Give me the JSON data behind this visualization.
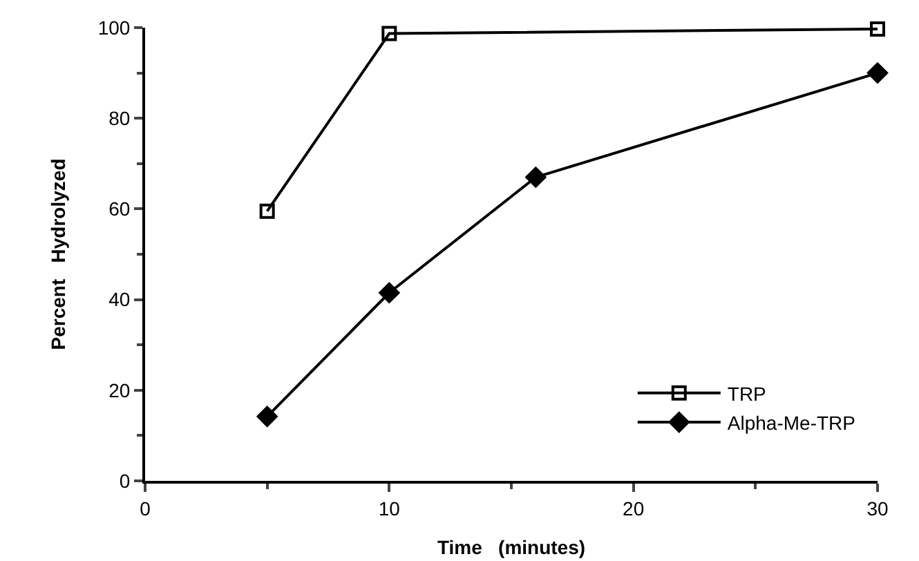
{
  "chart_data": {
    "type": "line",
    "xlabel": "Time   (minutes)",
    "ylabel": "Percent   Hydrolyzed",
    "xlim": [
      0,
      30
    ],
    "xticks": [
      0,
      10,
      20,
      30
    ],
    "ylim": [
      0,
      100
    ],
    "yticks": [
      0,
      20,
      40,
      60,
      80,
      100
    ],
    "grid": false,
    "legend": "bottom right",
    "series": [
      {
        "name": "TRP",
        "color": "#000000",
        "marker": "square",
        "x": [
          5,
          10,
          30
        ],
        "values": [
          59.5,
          98.7,
          99.7
        ]
      },
      {
        "name": "Alpha-Me-TRP",
        "color": "#000000",
        "marker": "diamond",
        "x": [
          5,
          10,
          16,
          30
        ],
        "values": [
          14.2,
          41.5,
          67,
          90
        ]
      }
    ]
  }
}
